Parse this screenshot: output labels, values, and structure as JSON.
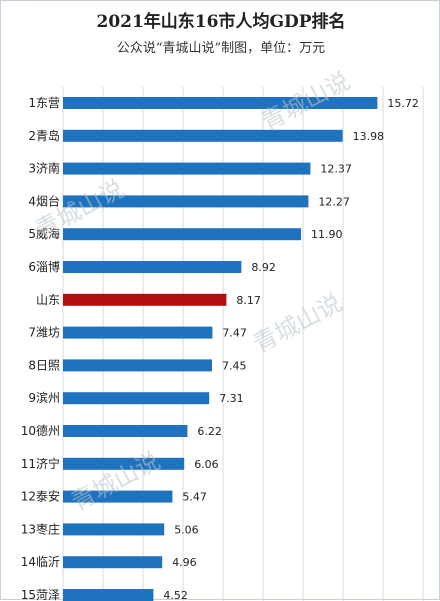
{
  "chart_data": {
    "type": "bar",
    "orientation": "horizontal",
    "title": "2021年山东16市人均GDP排名",
    "subtitle": "公众说“青城山说”制图，单位：万元",
    "categories": [
      "1东营",
      "2青岛",
      "3济南",
      "4烟台",
      "5威海",
      "6淄博",
      "山东",
      "7潍坊",
      "8日照",
      "9滨州",
      "10德州",
      "11济宁",
      "12泰安",
      "13枣庄",
      "14临沂",
      "15菏泽"
    ],
    "values": [
      15.72,
      13.98,
      12.37,
      12.27,
      11.9,
      8.92,
      8.17,
      7.47,
      7.45,
      7.31,
      6.22,
      6.06,
      5.47,
      5.06,
      4.96,
      4.52
    ],
    "value_labels": [
      "15.72",
      "13.98",
      "12.37",
      "12.27",
      "11.90",
      "8.92",
      "8.17",
      "7.47",
      "7.45",
      "7.31",
      "6.22",
      "6.06",
      "5.47",
      "5.06",
      "4.96",
      "4.52"
    ],
    "highlight_category": "山东",
    "colors": {
      "bar": "#1f73be",
      "highlight": "#b01010"
    },
    "xlim": [
      0,
      18
    ],
    "grid": true,
    "watermarks": [
      "青城山说",
      "青城山说",
      "青城山说",
      "青城山说"
    ]
  }
}
